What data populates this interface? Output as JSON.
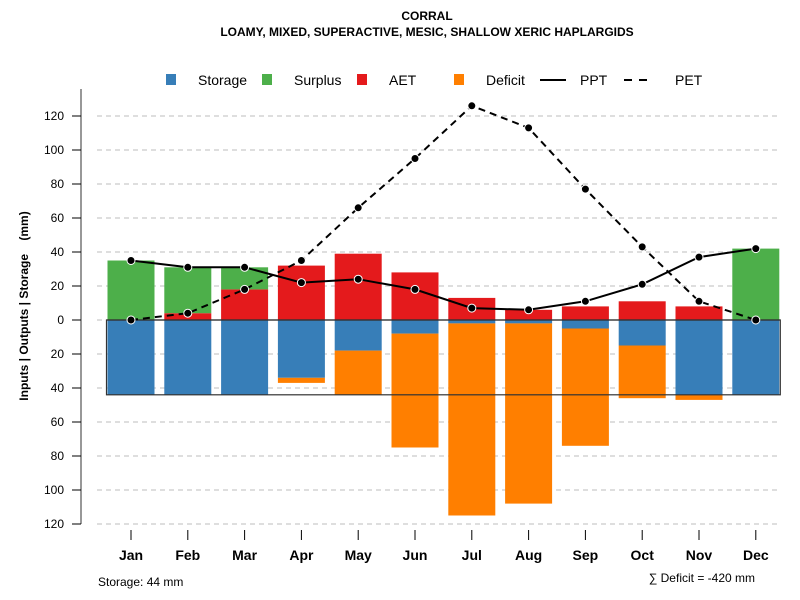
{
  "chart_data": {
    "type": "bar",
    "title": "CORRAL",
    "subtitle": "LOAMY, MIXED, SUPERACTIVE, MESIC, SHALLOW XERIC HAPLARGIDS",
    "xlabel": "",
    "ylabel": "Inputs | Outputs | Storage    (mm)",
    "ylim": [
      -120,
      120
    ],
    "yticks": [
      120,
      100,
      80,
      60,
      40,
      20,
      0,
      -20,
      -40,
      -60,
      -80,
      -100,
      -120
    ],
    "ytick_labels": [
      "120",
      "100",
      "80",
      "60",
      "40",
      "20",
      "0",
      "20",
      "40",
      "60",
      "80",
      "100",
      "120"
    ],
    "grid": true,
    "legend_position": "top",
    "categories": [
      "Jan",
      "Feb",
      "Mar",
      "Apr",
      "May",
      "Jun",
      "Jul",
      "Aug",
      "Sep",
      "Oct",
      "Nov",
      "Dec"
    ],
    "storage_capacity": 44,
    "series": [
      {
        "name": "Storage",
        "kind": "bar-below",
        "color": "#377EB8",
        "values": [
          44,
          44,
          44,
          34,
          18,
          8,
          2,
          2,
          5,
          15,
          44,
          44
        ]
      },
      {
        "name": "Surplus",
        "kind": "bar-above",
        "color": "#4DAF4A",
        "values": [
          35,
          27,
          13,
          0,
          0,
          0,
          0,
          0,
          0,
          0,
          0,
          42
        ]
      },
      {
        "name": "AET",
        "kind": "bar-above",
        "color": "#E41A1C",
        "values": [
          0,
          4,
          18,
          32,
          39,
          28,
          13,
          6,
          8,
          11,
          8,
          0
        ]
      },
      {
        "name": "Deficit",
        "kind": "bar-below",
        "color": "#FF7F00",
        "values": [
          0,
          0,
          0,
          3,
          26,
          67,
          113,
          106,
          69,
          31,
          3,
          0
        ]
      },
      {
        "name": "PPT",
        "kind": "line-solid",
        "color": "#000000",
        "values": [
          35,
          31,
          31,
          22,
          24,
          18,
          7,
          6,
          11,
          21,
          37,
          42
        ]
      },
      {
        "name": "PET",
        "kind": "line-dashed",
        "color": "#000000",
        "values": [
          0,
          4,
          18,
          35,
          66,
          95,
          126,
          113,
          77,
          43,
          11,
          0
        ]
      }
    ],
    "annotations": {
      "storage_note": "Storage: 44 mm",
      "deficit_note": "∑ Deficit = -420 mm"
    }
  }
}
